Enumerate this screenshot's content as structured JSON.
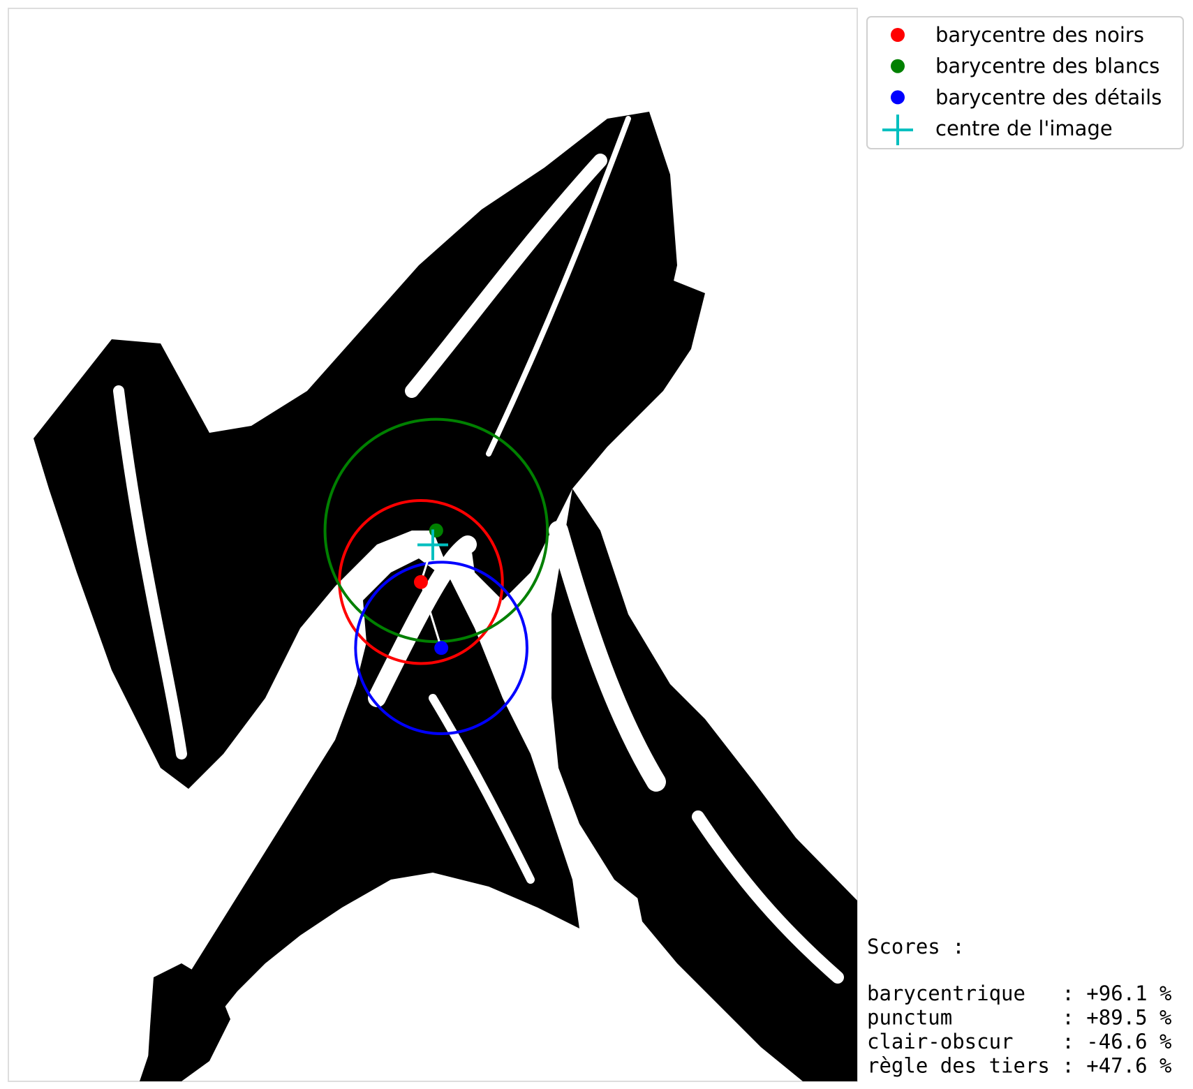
{
  "chart_data": {
    "type": "scatter",
    "title": "",
    "xlabel": "",
    "ylabel": "",
    "grid": false,
    "axes_visible": false,
    "image_width": 100,
    "image_height": 127,
    "background": "black-and-white thresholded image",
    "legend_position": "top-right (outside plot)",
    "series": [
      {
        "name": "barycentre des noirs",
        "marker": "circle",
        "color": "#ff0000",
        "point": {
          "x": 48.6,
          "y": 67.9
        },
        "circle_radius": 9.6
      },
      {
        "name": "barycentre des blancs",
        "marker": "circle",
        "color": "#008000",
        "point": {
          "x": 50.4,
          "y": 61.8
        },
        "circle_radius": 13.1
      },
      {
        "name": "barycentre des détails",
        "marker": "circle",
        "color": "#0000ff",
        "point": {
          "x": 51.0,
          "y": 75.7
        },
        "circle_radius": 10.1
      },
      {
        "name": "centre de l'image",
        "marker": "plus",
        "color": "#00bfbf",
        "point": {
          "x": 50.0,
          "y": 63.5
        }
      }
    ],
    "connectors_color": "#ffffff",
    "scores": {
      "heading": "Scores :",
      "rows": [
        {
          "label": "barycentrique  ",
          "value": "+96.1 %"
        },
        {
          "label": "punctum        ",
          "value": "+89.5 %"
        },
        {
          "label": "clair-obscur   ",
          "value": "-46.6 %"
        },
        {
          "label": "règle des tiers",
          "value": "+47.6 %"
        }
      ]
    }
  }
}
